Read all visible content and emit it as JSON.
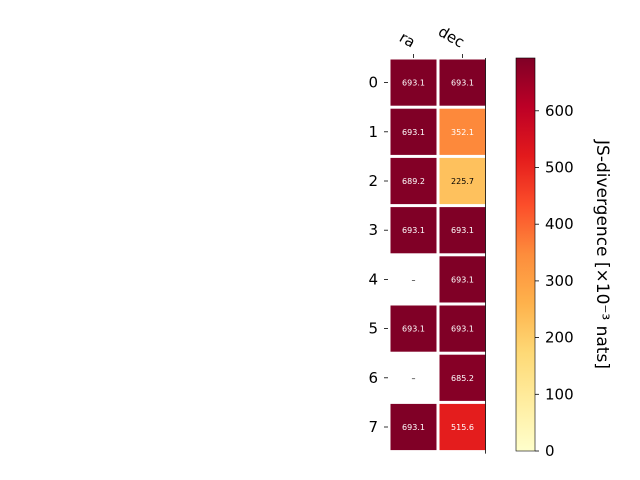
{
  "chart_data": {
    "type": "heatmap",
    "columns": [
      "ra",
      "dec"
    ],
    "rows": [
      "0",
      "1",
      "2",
      "3",
      "4",
      "5",
      "6",
      "7"
    ],
    "values": [
      [
        693.1,
        693.1
      ],
      [
        693.1,
        352.1
      ],
      [
        689.2,
        225.7
      ],
      [
        693.1,
        693.1
      ],
      [
        null,
        693.1
      ],
      [
        693.1,
        693.1
      ],
      [
        null,
        685.2
      ],
      [
        693.1,
        515.6
      ]
    ],
    "labels": [
      [
        "693.1",
        "693.1"
      ],
      [
        "693.1",
        "352.1"
      ],
      [
        "689.2",
        "225.7"
      ],
      [
        "693.1",
        "693.1"
      ],
      [
        "–",
        "693.1"
      ],
      [
        "693.1",
        "693.1"
      ],
      [
        "–",
        "685.2"
      ],
      [
        "693.1",
        "515.6"
      ]
    ],
    "colorbar": {
      "label": "JS-divergence [×10⁻³ nats]",
      "min": 0,
      "max": 693.1,
      "ticks": [
        0,
        100,
        200,
        300,
        400,
        500,
        600
      ],
      "tick_labels": [
        "0",
        "100",
        "200",
        "300",
        "400",
        "500",
        "600"
      ],
      "colormap": "YlOrRd"
    },
    "grid": false
  }
}
